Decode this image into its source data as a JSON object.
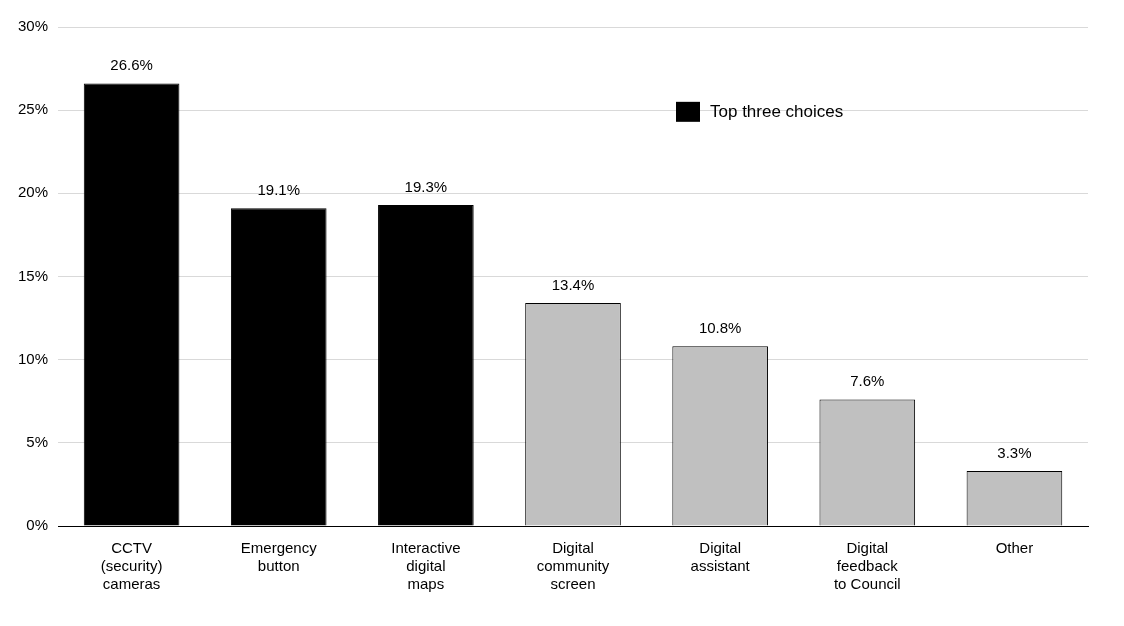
{
  "chart_data": {
    "type": "bar",
    "categories": [
      "CCTV (security) cameras",
      "Emergency button",
      "Interactive digital maps",
      "Digital community screen",
      "Digital assistant",
      "Digital feedback to Council",
      "Other"
    ],
    "series": [
      {
        "name": "Top three choices",
        "color": "#000000",
        "values": [
          26.6,
          19.1,
          19.3,
          null,
          null,
          null,
          null
        ]
      },
      {
        "color": "#c0c0c0",
        "values": [
          null,
          null,
          null,
          13.4,
          10.8,
          7.6,
          3.3
        ]
      }
    ],
    "value_labels": [
      "26.6%",
      "19.1%",
      "19.3%",
      "13.4%",
      "10.8%",
      "7.6%",
      "3.3%"
    ],
    "ylim": [
      0,
      30
    ],
    "yticks": [
      {
        "value": 0,
        "label": "0%"
      },
      {
        "value": 5,
        "label": "5%"
      },
      {
        "value": 10,
        "label": "10%"
      },
      {
        "value": 15,
        "label": "15%"
      },
      {
        "value": 20,
        "label": "20%"
      },
      {
        "value": 25,
        "label": "25%"
      },
      {
        "value": 30,
        "label": "30%"
      }
    ],
    "grid": "y",
    "legend": "top right"
  }
}
